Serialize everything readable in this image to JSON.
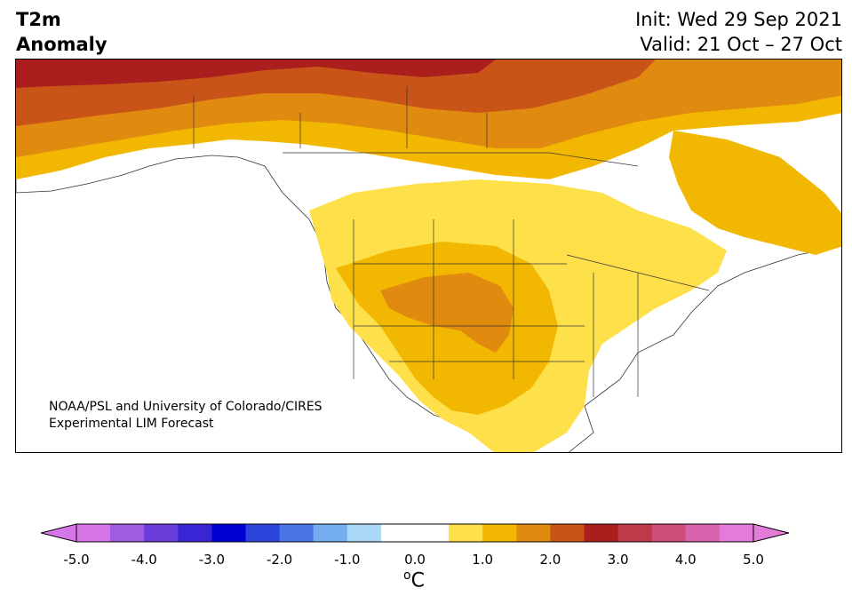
{
  "header": {
    "title_line1": "T2m",
    "title_line2": "Anomaly",
    "init_label": "Init: Wed 29 Sep 2021",
    "valid_label": "Valid: 21 Oct – 27 Oct"
  },
  "credit": {
    "line1": "NOAA/PSL and University of Colorado/CIRES",
    "line2": "Experimental LIM Forecast"
  },
  "colorbar": {
    "tick_labels": [
      "-5.0",
      "-4.0",
      "-3.0",
      "-2.0",
      "-1.0",
      "0.0",
      "1.0",
      "2.0",
      "3.0",
      "4.0",
      "5.0"
    ],
    "unit_symbol": "o",
    "unit_letter": "C",
    "colors": [
      "#d575e7",
      "#9d5ce2",
      "#6a3ddb",
      "#3a25d5",
      "#0000d4",
      "#2a44dc",
      "#4d74e4",
      "#74adee",
      "#aad8f7",
      "#ffffff",
      "#ffffff",
      "#fde04a",
      "#f2b700",
      "#e08a10",
      "#c85418",
      "#ab1e1e",
      "#be3a48",
      "#cc4e78",
      "#d864ad",
      "#e27cd8"
    ],
    "under_color": "#d575e7",
    "over_color": "#e27cd8"
  },
  "map": {
    "ocean_color": "#ffffff",
    "border_color": "#333333"
  }
}
